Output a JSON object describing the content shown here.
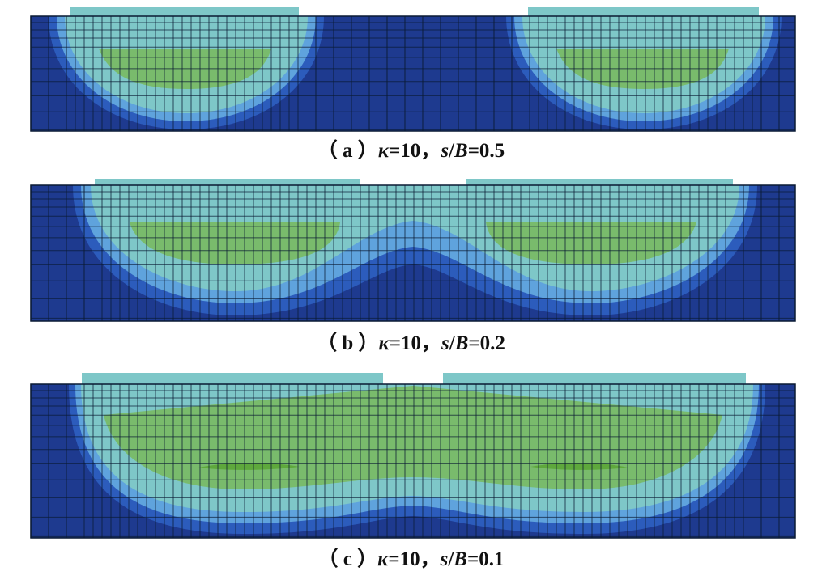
{
  "colors": {
    "background": "#1e3a8f",
    "band_outer": "#2c5cbc",
    "band_mid": "#5fa3dd",
    "band_inner": "#7ec7c8",
    "core": "#79bb6c",
    "peak": "#5ea83c",
    "mesh": "#0a1a33",
    "footing": "#7ec7c8"
  },
  "panels": [
    {
      "id": "a",
      "caption": {
        "prefix": "（ a ）",
        "kappa": "κ",
        "kappa_eq": "=10，",
        "s": "s",
        "slash": "/",
        "B": "B",
        "ratio": "=0.5"
      }
    },
    {
      "id": "b",
      "caption": {
        "prefix": "（ b ）",
        "kappa": "κ",
        "kappa_eq": "=10，",
        "s": "s",
        "slash": "/",
        "B": "B",
        "ratio": "=0.2"
      }
    },
    {
      "id": "c",
      "caption": {
        "prefix": "（ c ）",
        "kappa": "κ",
        "kappa_eq": "=10，",
        "s": "s",
        "slash": "/",
        "B": "B",
        "ratio": "=0.1"
      }
    }
  ]
}
